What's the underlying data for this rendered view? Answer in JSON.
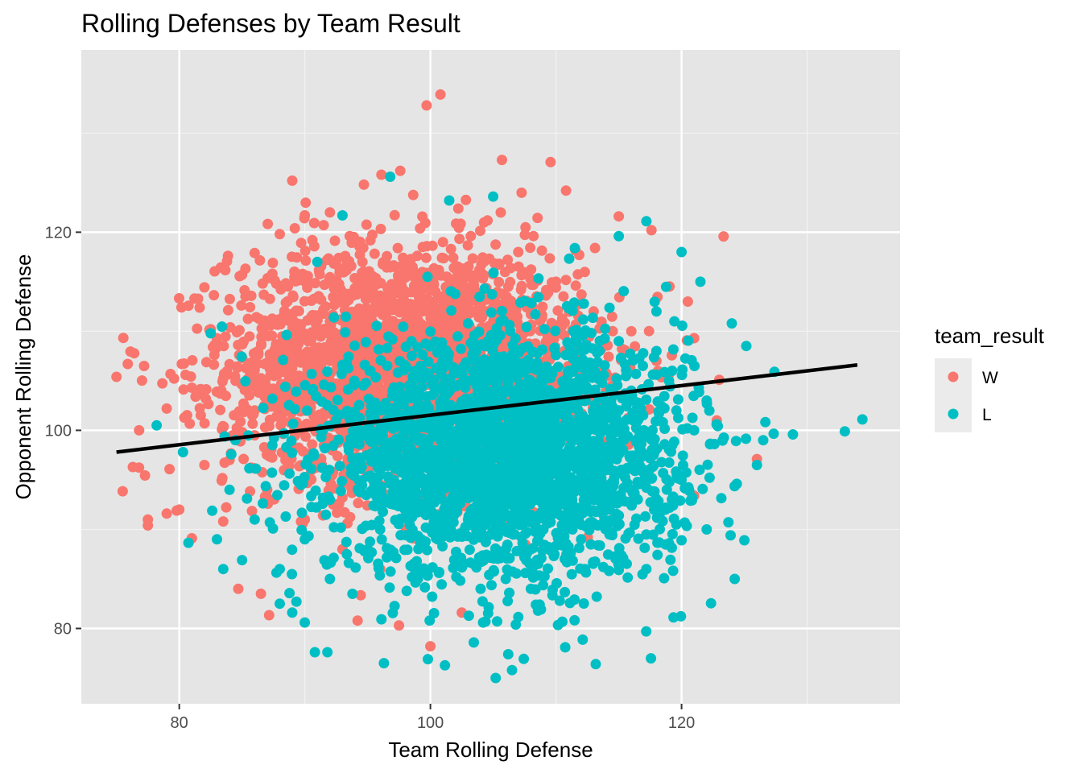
{
  "chart_data": {
    "type": "scatter",
    "title": "Rolling Defenses by Team Result",
    "xlabel": "Team Rolling Defense",
    "ylabel": "Opponent Rolling Defense",
    "xlim": [
      72.2,
      137.4
    ],
    "ylim": [
      72.4,
      138.4
    ],
    "x_ticks": [
      80,
      100,
      120
    ],
    "y_ticks": [
      80,
      100,
      120
    ],
    "x_tick_labels": [
      "80",
      "100",
      "120"
    ],
    "y_tick_labels": [
      "80",
      "100",
      "120"
    ],
    "grid": true,
    "panel_background": "#e5e5e5",
    "legend": {
      "title": "team_result",
      "position": "right",
      "entries": [
        {
          "label": "W",
          "color": "#f8766d"
        },
        {
          "label": "L",
          "color": "#00bfc4"
        }
      ]
    },
    "series": [
      {
        "name": "W",
        "color": "#f8766d",
        "cluster_summary": {
          "x_mean": 98,
          "y_mean": 106.5,
          "x_sd": 7,
          "y_sd": 6
        },
        "points": [
          [
            75.0,
            105.4
          ],
          [
            75.9,
            106.7
          ],
          [
            76.3,
            96.3
          ],
          [
            77.2,
            106.5
          ],
          [
            76.8,
            100.0
          ],
          [
            77.5,
            91.0
          ],
          [
            77.5,
            90.4
          ],
          [
            79.0,
            102.2
          ],
          [
            79.0,
            91.6
          ],
          [
            80.0,
            92.0
          ],
          [
            80.2,
            106.7
          ],
          [
            80.5,
            105.6
          ],
          [
            81.0,
            104.3
          ],
          [
            81.3,
            103.4
          ],
          [
            82.5,
            110.2
          ],
          [
            82.8,
            107.6
          ],
          [
            83.0,
            108.8
          ],
          [
            85.0,
            115.7
          ],
          [
            86.0,
            117.9
          ],
          [
            88.0,
            119.8
          ],
          [
            89.0,
            125.2
          ],
          [
            89.2,
            120.4
          ],
          [
            90.0,
            121.7
          ],
          [
            92.0,
            122.0
          ],
          [
            94.7,
            124.8
          ],
          [
            96.1,
            125.8
          ],
          [
            97.6,
            126.2
          ],
          [
            99.7,
            132.8
          ],
          [
            100.8,
            133.9
          ],
          [
            105.7,
            127.3
          ],
          [
            110.8,
            124.2
          ],
          [
            115.0,
            121.6
          ],
          [
            117.6,
            120.2
          ],
          [
            120.5,
            113.0
          ],
          [
            121.0,
            109.3
          ],
          [
            123.0,
            105.1
          ],
          [
            122.8,
            101.0
          ],
          [
            121.0,
            93.4
          ],
          [
            126.0,
            97.1
          ],
          [
            100.0,
            78.2
          ],
          [
            97.5,
            80.3
          ],
          [
            94.2,
            80.8
          ],
          [
            102.5,
            81.6
          ],
          [
            86.5,
            83.5
          ],
          [
            84.7,
            84.0
          ],
          [
            83.5,
            90.8
          ],
          [
            81.0,
            89.1
          ],
          [
            79.8,
            91.9
          ],
          [
            82.0,
            96.5
          ],
          [
            86.0,
            99.5
          ],
          [
            90.0,
            103.0
          ],
          [
            88.0,
            108.0
          ],
          [
            92.0,
            111.0
          ],
          [
            95.0,
            114.0
          ],
          [
            98.0,
            117.0
          ],
          [
            101.0,
            119.0
          ],
          [
            104.0,
            116.0
          ],
          [
            107.0,
            118.0
          ],
          [
            110.0,
            115.0
          ],
          [
            113.0,
            112.0
          ],
          [
            116.0,
            110.0
          ],
          [
            118.0,
            107.0
          ],
          [
            114.0,
            104.0
          ],
          [
            111.0,
            101.0
          ],
          [
            108.0,
            98.0
          ],
          [
            105.0,
            95.0
          ],
          [
            102.0,
            92.0
          ],
          [
            99.0,
            89.0
          ],
          [
            96.0,
            86.0
          ],
          [
            93.0,
            88.0
          ],
          [
            90.0,
            91.0
          ],
          [
            87.0,
            94.0
          ],
          [
            84.0,
            97.0
          ],
          [
            86.0,
            102.0
          ],
          [
            89.0,
            105.0
          ],
          [
            92.0,
            107.0
          ],
          [
            95.0,
            109.0
          ],
          [
            98.0,
            111.0
          ],
          [
            101.0,
            113.0
          ],
          [
            104.0,
            110.0
          ],
          [
            107.0,
            108.0
          ],
          [
            110.0,
            106.0
          ],
          [
            113.0,
            103.0
          ],
          [
            96.0,
            104.0
          ],
          [
            99.0,
            102.0
          ],
          [
            102.0,
            105.0
          ],
          [
            93.0,
            100.0
          ],
          [
            91.0,
            97.0
          ],
          [
            94.0,
            95.0
          ],
          [
            97.0,
            97.0
          ],
          [
            100.0,
            99.0
          ],
          [
            103.0,
            101.0
          ]
        ]
      },
      {
        "name": "L",
        "color": "#00bfc4",
        "cluster_summary": {
          "x_mean": 106,
          "y_mean": 97.5,
          "x_sd": 7,
          "y_sd": 6
        },
        "points": [
          [
            78.2,
            100.5
          ],
          [
            80.3,
            97.8
          ],
          [
            82.5,
            109.8
          ],
          [
            83.0,
            89.0
          ],
          [
            83.5,
            86.0
          ],
          [
            85.0,
            86.9
          ],
          [
            89.0,
            81.6
          ],
          [
            90.0,
            80.6
          ],
          [
            91.8,
            77.6
          ],
          [
            90.8,
            77.6
          ],
          [
            96.3,
            76.5
          ],
          [
            99.8,
            76.9
          ],
          [
            105.2,
            75.0
          ],
          [
            106.5,
            75.8
          ],
          [
            106.2,
            77.4
          ],
          [
            104.2,
            80.6
          ],
          [
            106.8,
            80.4
          ],
          [
            108.4,
            82.4
          ],
          [
            110.3,
            82.8
          ],
          [
            112.3,
            86.0
          ],
          [
            115.0,
            85.9
          ],
          [
            117.2,
            86.0
          ],
          [
            119.0,
            88.6
          ],
          [
            120.0,
            88.9
          ],
          [
            122.0,
            90.0
          ],
          [
            124.4,
            94.6
          ],
          [
            125.0,
            88.9
          ],
          [
            126.0,
            96.5
          ],
          [
            126.5,
            99.0
          ],
          [
            127.4,
            105.9
          ],
          [
            133.0,
            99.9
          ],
          [
            134.4,
            101.1
          ],
          [
            124.0,
            110.8
          ],
          [
            121.5,
            115.0
          ],
          [
            120.0,
            118.0
          ],
          [
            117.2,
            121.1
          ],
          [
            115.0,
            119.6
          ],
          [
            111.5,
            118.4
          ],
          [
            105.0,
            123.6
          ],
          [
            101.5,
            123.2
          ],
          [
            96.8,
            125.6
          ],
          [
            93.0,
            121.7
          ],
          [
            91.0,
            117.0
          ],
          [
            118.0,
            108.0
          ],
          [
            116.0,
            104.0
          ],
          [
            114.0,
            100.0
          ],
          [
            112.0,
            96.0
          ],
          [
            110.0,
            92.0
          ],
          [
            108.0,
            88.0
          ],
          [
            106.0,
            85.0
          ],
          [
            104.0,
            84.0
          ],
          [
            102.0,
            87.0
          ],
          [
            100.0,
            90.0
          ],
          [
            98.0,
            93.0
          ],
          [
            96.0,
            96.0
          ],
          [
            94.0,
            99.0
          ],
          [
            92.0,
            93.0
          ],
          [
            90.0,
            89.0
          ],
          [
            88.0,
            86.0
          ],
          [
            86.0,
            91.0
          ],
          [
            84.0,
            94.0
          ],
          [
            95.0,
            88.0
          ],
          [
            99.0,
            85.0
          ],
          [
            103.0,
            91.0
          ],
          [
            107.0,
            94.0
          ],
          [
            111.0,
            98.0
          ],
          [
            115.0,
            102.0
          ],
          [
            119.0,
            105.0
          ],
          [
            121.0,
            100.0
          ],
          [
            117.0,
            96.0
          ],
          [
            113.0,
            93.0
          ],
          [
            109.0,
            90.0
          ],
          [
            105.0,
            98.0
          ],
          [
            101.0,
            101.0
          ],
          [
            97.0,
            104.0
          ],
          [
            103.0,
            105.0
          ],
          [
            107.0,
            102.0
          ],
          [
            111.0,
            106.0
          ],
          [
            115.0,
            109.0
          ],
          [
            112.0,
            89.0
          ],
          [
            108.0,
            84.0
          ],
          [
            104.0,
            96.0
          ],
          [
            100.0,
            94.0
          ],
          [
            96.0,
            90.0
          ],
          [
            92.0,
            85.0
          ],
          [
            88.0,
            82.5
          ],
          [
            109.0,
            100.0
          ],
          [
            113.0,
            104.0
          ],
          [
            117.0,
            100.0
          ],
          [
            120.0,
            95.0
          ],
          [
            122.0,
            103.0
          ],
          [
            118.0,
            112.0
          ]
        ]
      }
    ],
    "trend_line": {
      "x": [
        75.0,
        134.0
      ],
      "y": [
        97.8,
        106.6
      ],
      "color": "#000000"
    }
  }
}
